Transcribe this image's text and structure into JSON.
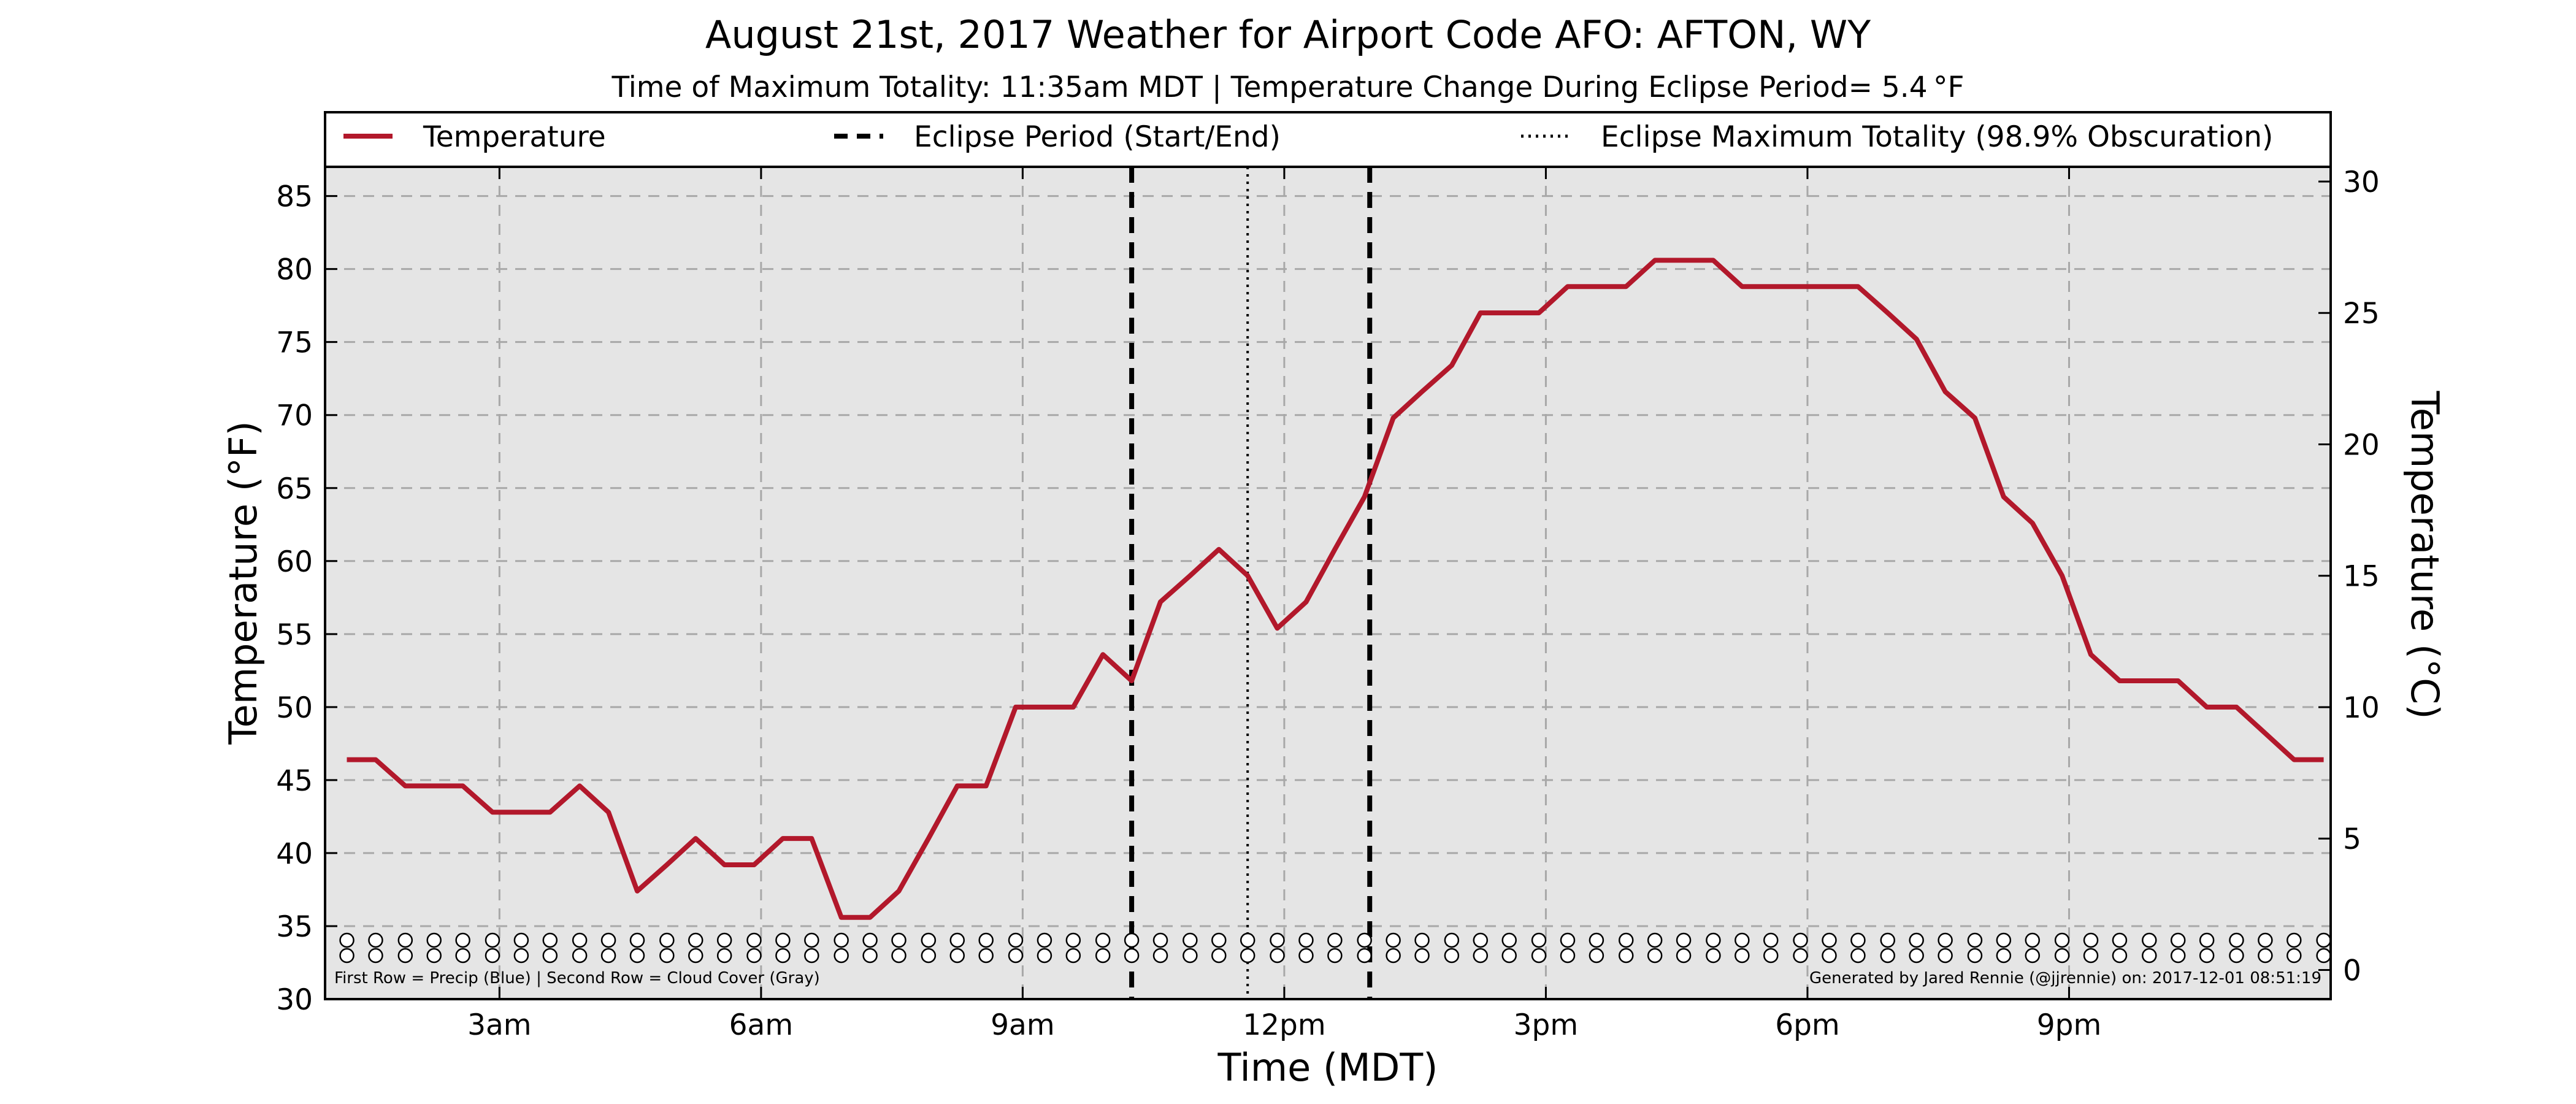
{
  "chart_data": {
    "type": "line",
    "title": "August 21st, 2017 Weather for Airport Code AFO: AFTON, WY",
    "subtitle": "Time of Maximum Totality: 11:35am MDT | Temperature Change During Eclipse Period= 5.4 °F",
    "xlabel": "Time (MDT)",
    "ylabel": "Temperature (°F)",
    "ylabel_right": "Temperature (°C)",
    "xlim": [
      1.0,
      24.0
    ],
    "ylim": [
      30,
      87
    ],
    "ylim_right": [
      -1.11,
      30.56
    ],
    "x_ticks": [
      3,
      6,
      9,
      12,
      15,
      18,
      21
    ],
    "x_tick_labels": [
      "3am",
      "6am",
      "9am",
      "12pm",
      "3pm",
      "6pm",
      "9pm"
    ],
    "y_ticks": [
      30,
      35,
      40,
      45,
      50,
      55,
      60,
      65,
      70,
      75,
      80,
      85
    ],
    "y_ticks_right": [
      0,
      5,
      10,
      15,
      20,
      25,
      30
    ],
    "grid": true,
    "legend_placement": "top",
    "legend": [
      {
        "label": "Temperature",
        "style": "solid",
        "color": "#b2182b"
      },
      {
        "label": "Eclipse Period (Start/End)",
        "style": "dashed",
        "color": "#000000"
      },
      {
        "label": "Eclipse Maximum Totality (98.9% Obscuration)",
        "style": "dotted",
        "color": "#000000"
      }
    ],
    "series": [
      {
        "name": "Temperature",
        "color": "#b2182b",
        "x": [
          1.25,
          1.58,
          1.92,
          2.25,
          2.58,
          2.92,
          3.25,
          3.58,
          3.92,
          4.25,
          4.58,
          4.92,
          5.25,
          5.58,
          5.92,
          6.25,
          6.58,
          6.92,
          7.25,
          7.58,
          7.92,
          8.25,
          8.58,
          8.92,
          9.25,
          9.58,
          9.92,
          10.25,
          10.58,
          10.92,
          11.25,
          11.58,
          11.92,
          12.25,
          12.58,
          12.92,
          13.25,
          13.58,
          13.92,
          14.25,
          14.58,
          14.92,
          15.25,
          15.58,
          15.92,
          16.25,
          16.58,
          16.92,
          17.25,
          17.58,
          17.92,
          18.25,
          18.58,
          18.92,
          19.25,
          19.58,
          19.92,
          20.25,
          20.58,
          20.92,
          21.25,
          21.58,
          21.92,
          22.25,
          22.58,
          22.92,
          23.25,
          23.58,
          23.92
        ],
        "y": [
          46.4,
          46.4,
          44.6,
          44.6,
          44.6,
          42.8,
          42.8,
          42.8,
          44.6,
          42.8,
          37.4,
          39.2,
          41.0,
          39.2,
          39.2,
          41.0,
          41.0,
          35.6,
          35.6,
          37.4,
          41.0,
          44.6,
          44.6,
          50.0,
          50.0,
          50.0,
          53.6,
          51.8,
          57.2,
          59.0,
          60.8,
          59.0,
          55.4,
          57.2,
          60.8,
          64.4,
          69.8,
          71.6,
          73.4,
          77.0,
          77.0,
          77.0,
          78.8,
          78.8,
          78.8,
          80.6,
          80.6,
          80.6,
          78.8,
          78.8,
          78.8,
          78.8,
          78.8,
          77.0,
          75.2,
          71.6,
          69.8,
          64.4,
          62.6,
          59.0,
          53.6,
          51.8,
          51.8,
          51.8,
          50.0,
          50.0,
          48.2,
          46.4,
          46.4
        ]
      }
    ],
    "eclipse_start": 10.25,
    "eclipse_end": 12.98,
    "eclipse_max": 11.58,
    "marker_rows": {
      "marker": "o",
      "first_row": "precip",
      "second_row": "cloud cover"
    },
    "annotations": {
      "left": "First Row = Precip (Blue) | Second Row = Cloud Cover (Gray)",
      "right": "Generated by Jared Rennie (@jjrennie) on: 2017-12-01 08:51:19"
    }
  }
}
